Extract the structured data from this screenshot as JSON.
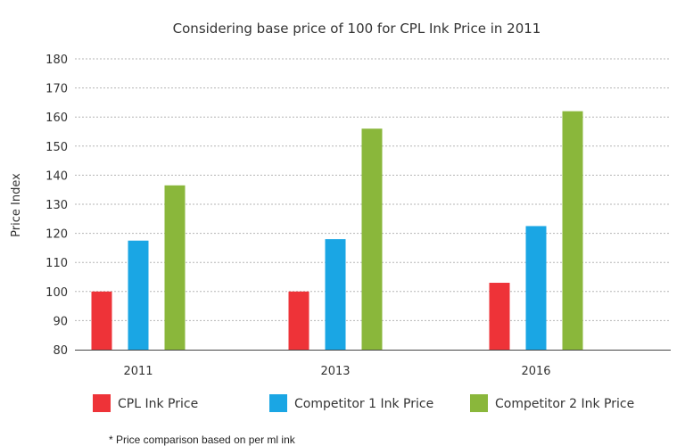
{
  "chart_data": {
    "type": "bar",
    "title": "Considering base price of 100 for CPL Ink Price in 2011",
    "ylabel": "Price Index",
    "xlabel": "",
    "categories": [
      "2011",
      "2013",
      "2016"
    ],
    "series": [
      {
        "name": "CPL Ink Price",
        "color": "#ee3338",
        "values": [
          100,
          100,
          103
        ]
      },
      {
        "name": "Competitor 1 Ink Price",
        "color": "#1aa6e4",
        "values": [
          117.5,
          118,
          122.5
        ]
      },
      {
        "name": "Competitor 2 Ink Price",
        "color": "#8ab73b",
        "values": [
          136.5,
          156,
          162
        ]
      }
    ],
    "ylim": [
      80,
      180
    ],
    "yticks": [
      80,
      90,
      100,
      110,
      120,
      130,
      140,
      150,
      160,
      170,
      180
    ],
    "grid": true,
    "legend_position": "bottom"
  },
  "footnote": "* Price comparison based on per ml ink"
}
